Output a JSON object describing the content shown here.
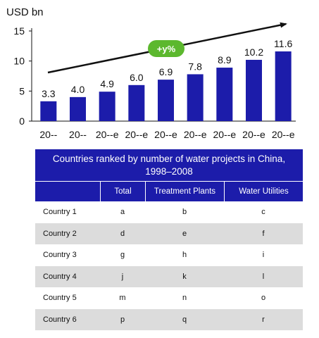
{
  "chart_data": {
    "type": "bar",
    "unit_label": "USD bn",
    "categories": [
      "20--",
      "20--",
      "20--e",
      "20--e",
      "20--e",
      "20--e",
      "20--e",
      "20--e",
      "20--e"
    ],
    "values": [
      3.3,
      4.0,
      4.9,
      6.0,
      6.9,
      7.8,
      8.9,
      10.2,
      11.6
    ],
    "value_labels": [
      "3.3",
      "4.0",
      "4.9",
      "6.0",
      "6.9",
      "7.8",
      "8.9",
      "10.2",
      "11.6"
    ],
    "y_ticks": [
      0,
      5,
      10,
      15
    ],
    "ylim": [
      0,
      15
    ],
    "bar_color": "#1c1caa",
    "trend_label": "+y%",
    "trend_badge_color": "#5cb82e"
  },
  "table": {
    "title": "Countries ranked by number of water projects in China, 1998–2008",
    "header_color": "#1c1caa",
    "columns": [
      "",
      "Total",
      "Treatment Plants",
      "Water Utilities"
    ],
    "rows": [
      [
        "Country 1",
        "a",
        "b",
        "c"
      ],
      [
        "Country 2",
        "d",
        "e",
        "f"
      ],
      [
        "Country 3",
        "g",
        "h",
        "i"
      ],
      [
        "Country 4",
        "j",
        "k",
        "l"
      ],
      [
        "Country 5",
        "m",
        "n",
        "o"
      ],
      [
        "Country 6",
        "p",
        "q",
        "r"
      ]
    ]
  }
}
